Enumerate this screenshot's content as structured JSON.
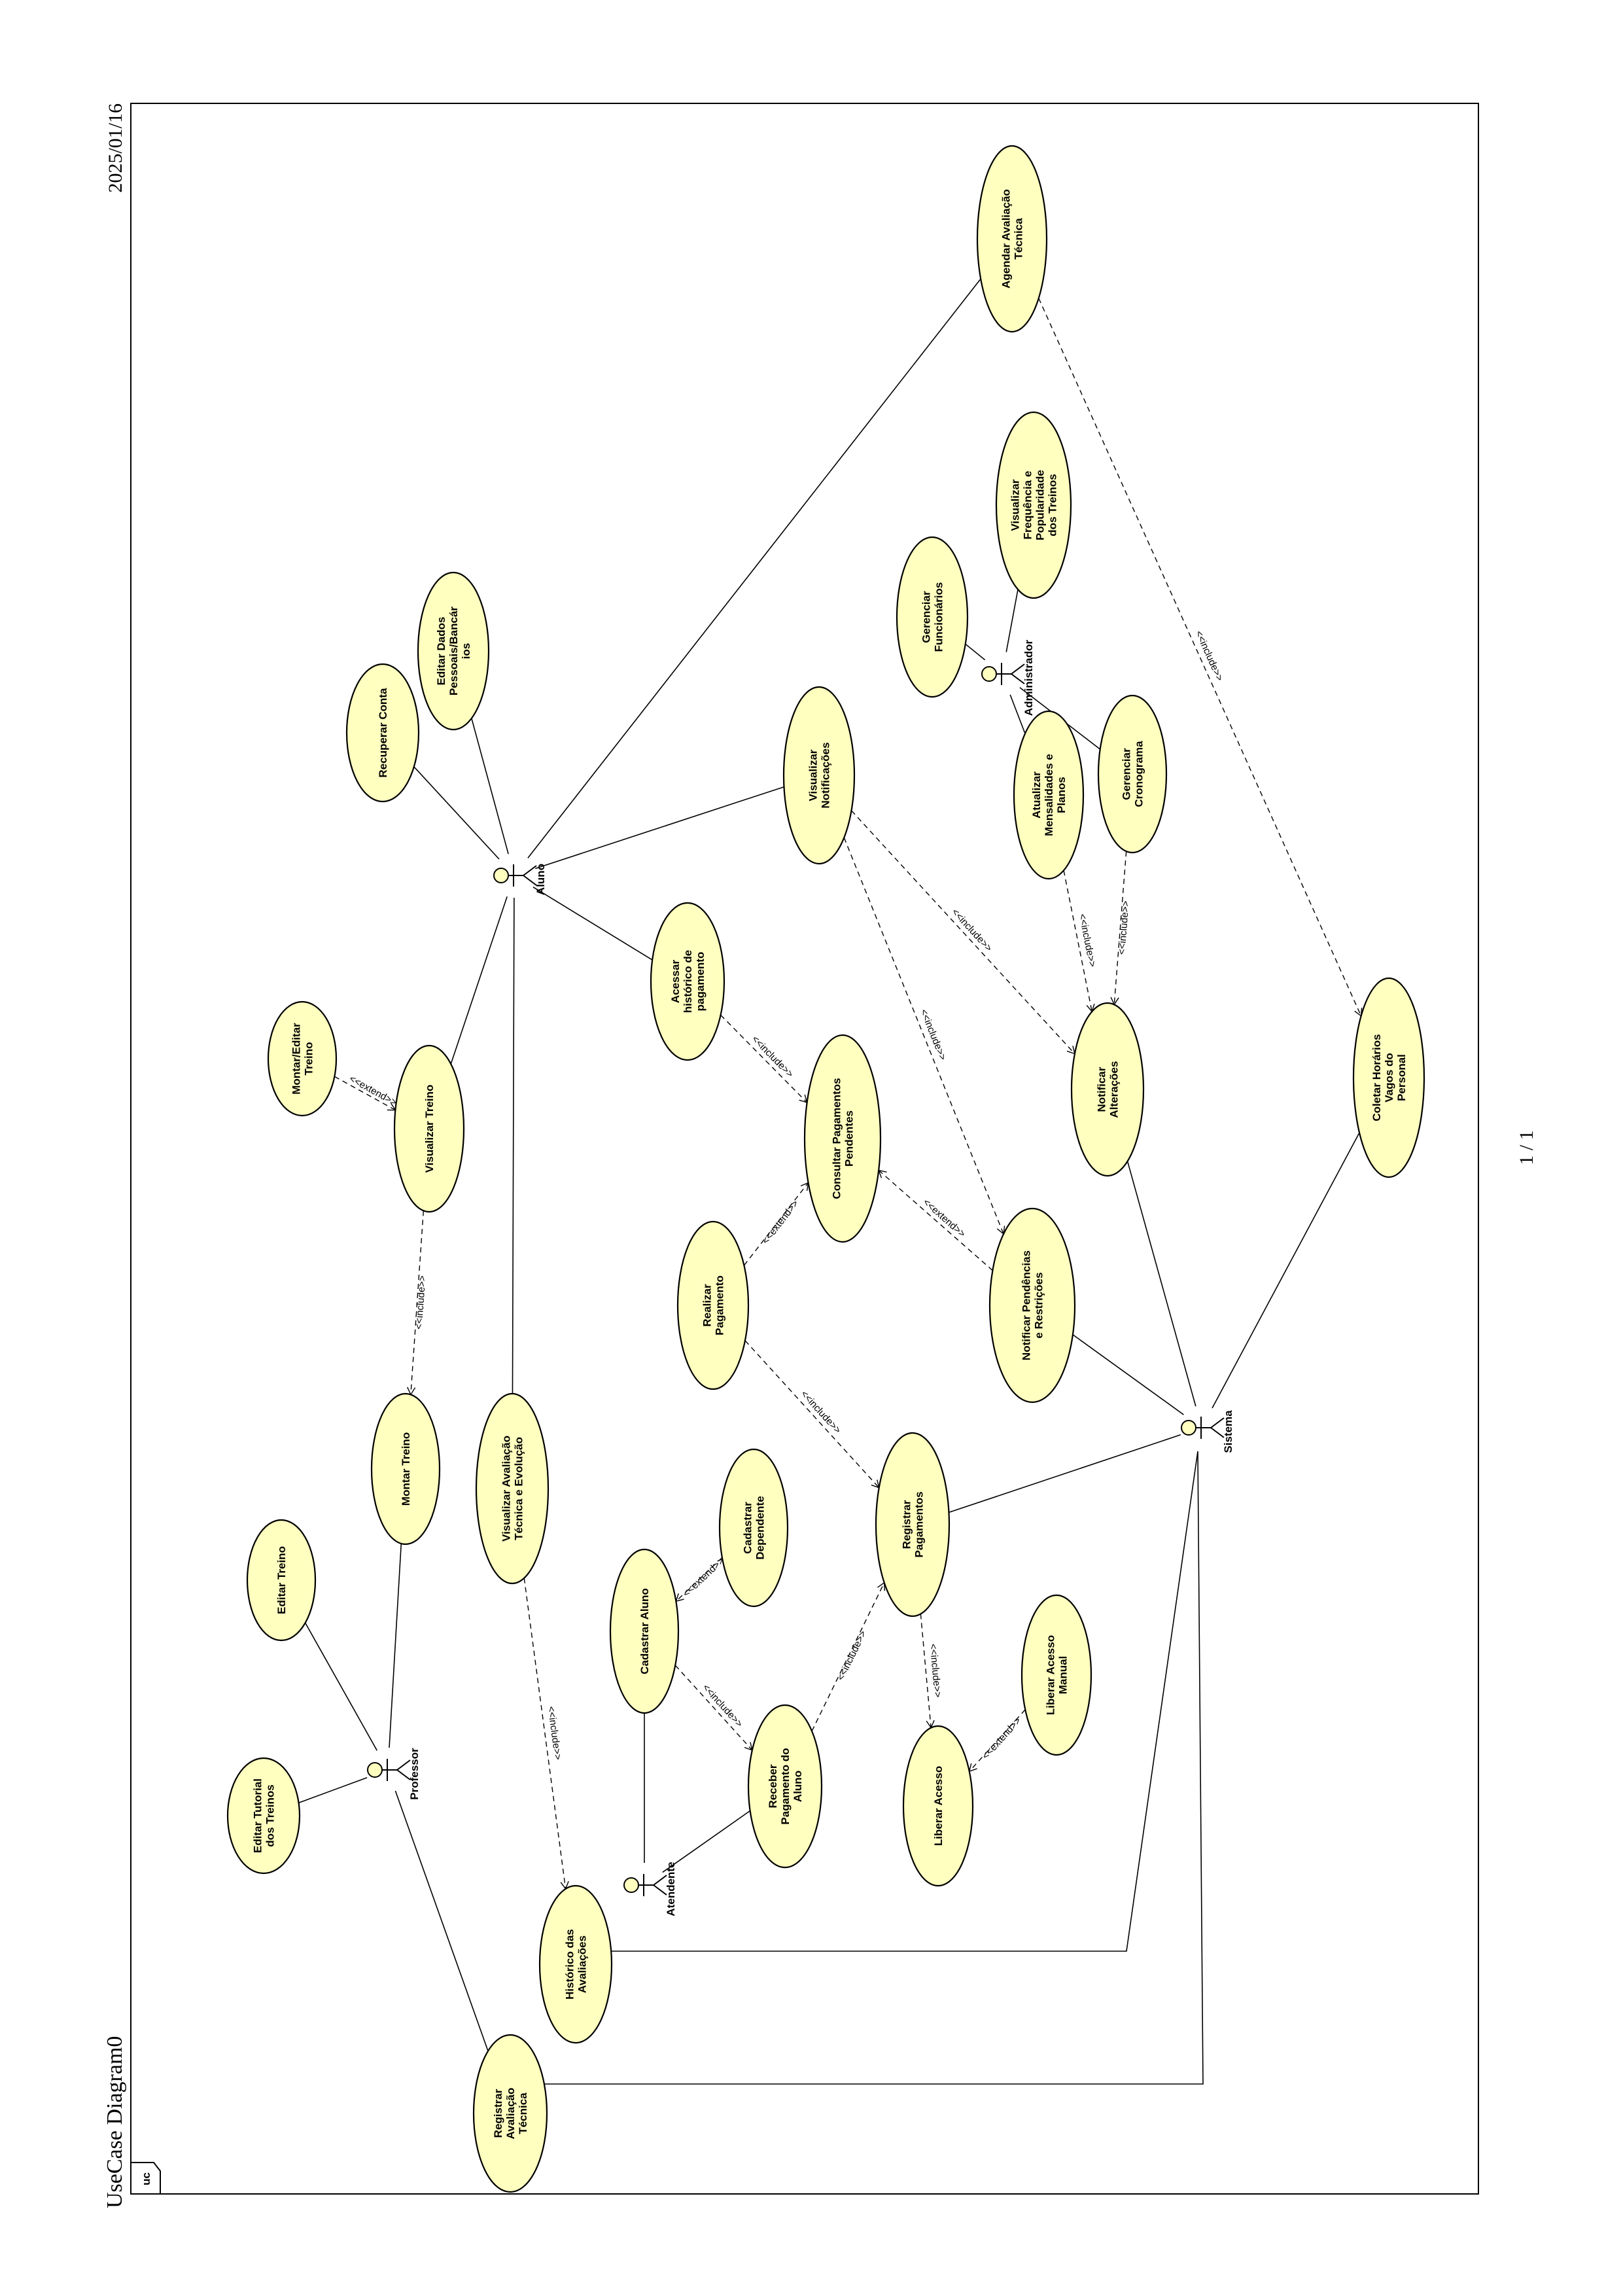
{
  "header": {
    "title": "UseCase Diagram0",
    "date": "2025/01/16",
    "page": "1 / 1",
    "frame_tag": "uc"
  },
  "colors": {
    "usecase_fill": "#ffffc0",
    "stroke": "#000000"
  },
  "actors": {
    "aluno": "Aluno",
    "professor": "Professor",
    "atendente": "Atendente",
    "administrador": "Administrador",
    "sistema": "Sistema"
  },
  "usecases": {
    "editar_tutorial": [
      "Editar Tutorial",
      "dos Treinos"
    ],
    "editar_treino": [
      "Editar Treino"
    ],
    "montar_treino": [
      "Montar Treino"
    ],
    "visualizar_treino": [
      "Visualizar Treino"
    ],
    "montar_editar_treino": [
      "Montar/Editar",
      "Treino"
    ],
    "recuperar_conta": [
      "Recuperar Conta"
    ],
    "editar_dados": [
      "Editar Dados",
      "Pessoais/Bancár",
      "ios"
    ],
    "visualizar_avaliacao": [
      "Visualizar Avaliação",
      "Técnica e Evolução"
    ],
    "historico_avaliacoes": [
      "Histórico das",
      "Avaliações"
    ],
    "registrar_avaliacao": [
      "Registrar",
      "Avaliação",
      "Técnica"
    ],
    "cadastrar_aluno": [
      "Cadastrar Aluno"
    ],
    "cadastrar_dependente": [
      "Cadastrar",
      "Dependente"
    ],
    "receber_pagamento": [
      "Receber",
      "Pagamento do",
      "Aluno"
    ],
    "realizar_pagamento": [
      "Realizar",
      "Pagamento"
    ],
    "acessar_historico": [
      "Acessar",
      "histórico de",
      "pagamento"
    ],
    "consultar_pagamentos": [
      "Consultar Pagamentos",
      "Pendentes"
    ],
    "registrar_pagamentos": [
      "Registrar",
      "Pagamentos"
    ],
    "liberar_acesso": [
      "Liberar Acesso"
    ],
    "liberar_acesso_manual": [
      "Liberar Acesso",
      "Manual"
    ],
    "visualizar_notificacoes": [
      "Visualizar",
      "Notificações"
    ],
    "notificar_pendencias": [
      "Notificar Pendências",
      "e Restrições"
    ],
    "notificar_alteracoes": [
      "Notificar",
      "Alterações"
    ],
    "atualizar_mensalidades": [
      "Atualizar",
      "Mensalidades e",
      "Planos"
    ],
    "gerenciar_cronograma": [
      "Gerenciar",
      "Cronograma"
    ],
    "gerenciar_funcionarios": [
      "Gerenciar",
      "Funcionários"
    ],
    "visualizar_frequencia": [
      "Visualizar",
      "Frequência e",
      "Popularidade",
      "dos Treinos"
    ],
    "agendar_avaliacao": [
      "Agendar Avaliação",
      "Técnica"
    ],
    "coletar_horarios": [
      "Coletar Horários",
      "Vagos do",
      "Personal"
    ]
  },
  "relations": {
    "include": "<<include>>",
    "extend": "<<extend>>"
  }
}
